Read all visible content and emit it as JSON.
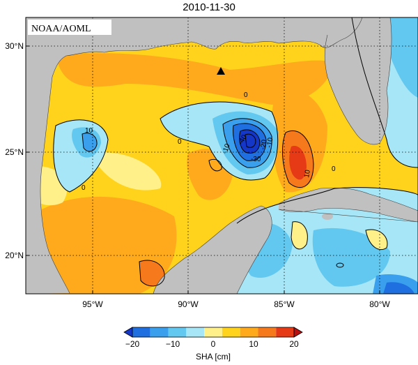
{
  "title": "2010-11-30",
  "credit": "NOAA/AOML",
  "map": {
    "lat_labels": [
      "30°N",
      "25°N",
      "20°N"
    ],
    "lon_labels": [
      "95°W",
      "90°W",
      "85°W",
      "80°W"
    ],
    "contour_labels": [
      "0",
      "0",
      "0",
      "0",
      "10",
      "10",
      "-10",
      "-20",
      "-30",
      "-40",
      "-10"
    ],
    "marker": "station-triangle"
  },
  "colorbar": {
    "label": "SHA [cm]",
    "ticks": [
      "−20",
      "−10",
      "0",
      "10",
      "20"
    ],
    "colors": [
      "#1437c8",
      "#1f6fe0",
      "#3aa0ee",
      "#63c8f0",
      "#a6e6f6",
      "#fff08a",
      "#ffd21c",
      "#ffaa1c",
      "#f67a1c",
      "#e63a17",
      "#b81010"
    ]
  },
  "colors": {
    "land": "#c0c0c0",
    "warm": "#ffaa1c",
    "mid": "#fff08a",
    "cold": "#3aa0ee"
  }
}
